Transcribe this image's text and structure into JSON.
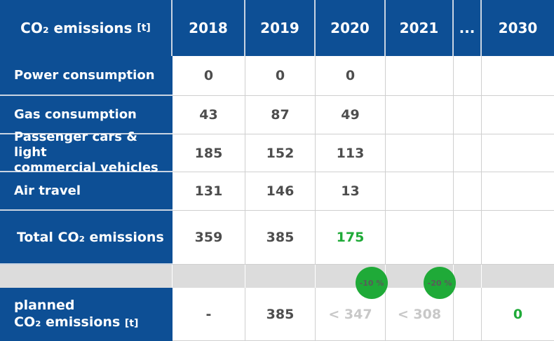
{
  "header": {
    "label_prefix": "CO₂ emissions",
    "label_unit": "[t]",
    "years": [
      "2018",
      "2019",
      "2020",
      "2021",
      "...",
      "2030"
    ]
  },
  "rows": [
    {
      "label": "Power consumption",
      "values": [
        "0",
        "0",
        "0",
        "",
        "",
        ""
      ]
    },
    {
      "label": "Gas consumption",
      "values": [
        "43",
        "87",
        "49",
        "",
        "",
        ""
      ]
    },
    {
      "label_line1": "Passenger cars & light",
      "label_line2": "commercial vehicles",
      "values": [
        "185",
        "152",
        "113",
        "",
        "",
        ""
      ]
    },
    {
      "label": "Air travel",
      "values": [
        "131",
        "146",
        "13",
        "",
        "",
        ""
      ]
    },
    {
      "label": "Total CO₂ emissions",
      "values": [
        "359",
        "385",
        "175",
        "",
        "",
        ""
      ]
    }
  ],
  "planned": {
    "label_line1": "planned",
    "label_line2": "CO₂ emissions",
    "label_unit": "[t]",
    "values": [
      "-",
      "385",
      "< 347",
      "< 308",
      "",
      "0"
    ]
  },
  "badges": [
    "-10 %",
    "-20 %"
  ],
  "colors": {
    "header_blue": "#0d4f95",
    "green": "#1faa38",
    "gap_gray": "#dcdcdc"
  }
}
